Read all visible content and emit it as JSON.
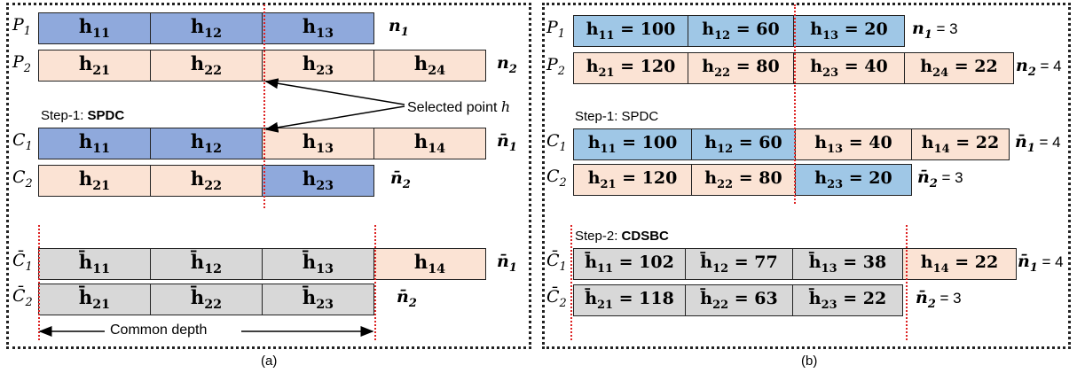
{
  "panel_a": {
    "caption": "(a)",
    "rows": [
      {
        "label": "P",
        "sub": "1",
        "cells": [
          [
            "h",
            "11"
          ],
          [
            "h",
            "12"
          ],
          [
            "h",
            "13"
          ]
        ],
        "n": "n",
        "nsub": "1"
      },
      {
        "label": "P",
        "sub": "2",
        "cells": [
          [
            "h",
            "21"
          ],
          [
            "h",
            "22"
          ],
          [
            "h",
            "23"
          ],
          [
            "h",
            "24"
          ]
        ],
        "n": "n",
        "nsub": "2"
      },
      {
        "label": "C",
        "sub": "1",
        "cells": [
          [
            "h",
            "11"
          ],
          [
            "h",
            "12"
          ],
          [
            "h",
            "13"
          ],
          [
            "h",
            "14"
          ]
        ],
        "n": "n̄",
        "nsub": "1"
      },
      {
        "label": "C",
        "sub": "2",
        "cells": [
          [
            "h",
            "21"
          ],
          [
            "h",
            "22"
          ],
          [
            "h",
            "23"
          ]
        ],
        "n": "n̄",
        "nsub": "2"
      },
      {
        "label": "C̄",
        "sub": "1",
        "cells": [
          [
            "h̄",
            "11"
          ],
          [
            "h̄",
            "12"
          ],
          [
            "h̄",
            "13"
          ],
          [
            "h",
            "14"
          ]
        ],
        "n": "n̄",
        "nsub": "1"
      },
      {
        "label": "C̄",
        "sub": "2",
        "cells": [
          [
            "h̄",
            "21"
          ],
          [
            "h̄",
            "22"
          ],
          [
            "h̄",
            "23"
          ]
        ],
        "n": "n̄",
        "nsub": "2"
      }
    ],
    "step1_prefix": "Step-1: ",
    "step1_name": "SPDC",
    "selected_point": "Selected point ",
    "selected_point_var": "h",
    "common_depth": "Common depth"
  },
  "panel_b": {
    "caption": "(b)",
    "rows": [
      {
        "label": "P",
        "sub": "1",
        "cells": [
          [
            "h",
            "11",
            " = 100"
          ],
          [
            "h",
            "12",
            " = 60"
          ],
          [
            "h",
            "13",
            " = 20"
          ]
        ],
        "n": "n",
        "nsub": "1",
        "nval": " = 3"
      },
      {
        "label": "P",
        "sub": "2",
        "cells": [
          [
            "h",
            "21",
            " = 120"
          ],
          [
            "h",
            "22",
            " = 80"
          ],
          [
            "h",
            "23",
            " = 40"
          ],
          [
            "h",
            "24",
            " = 22"
          ]
        ],
        "n": "n",
        "nsub": "2",
        "nval": " = 4"
      },
      {
        "label": "C",
        "sub": "1",
        "cells": [
          [
            "h",
            "11",
            " = 100"
          ],
          [
            "h",
            "12",
            " = 60"
          ],
          [
            "h",
            "13",
            " = 40"
          ],
          [
            "h",
            "14",
            " = 22"
          ]
        ],
        "n": "n̄",
        "nsub": "1",
        "nval": " = 4"
      },
      {
        "label": "C",
        "sub": "2",
        "cells": [
          [
            "h",
            "21",
            " = 120"
          ],
          [
            "h",
            "22",
            " = 80"
          ],
          [
            "h",
            "23",
            " = 20"
          ]
        ],
        "n": "n̄",
        "nsub": "2",
        "nval": " = 3"
      },
      {
        "label": "C̄",
        "sub": "1",
        "cells": [
          [
            "h̄",
            "11",
            " = 102"
          ],
          [
            "h̄",
            "12",
            " = 77"
          ],
          [
            "h̄",
            "13",
            " = 38"
          ],
          [
            "h",
            "14",
            " = 22"
          ]
        ],
        "n": "n̄",
        "nsub": "1",
        "nval": " = 4"
      },
      {
        "label": "C̄",
        "sub": "2",
        "cells": [
          [
            "h̄",
            "21",
            " = 118"
          ],
          [
            "h̄",
            "22",
            " = 63"
          ],
          [
            "h̄",
            "23",
            " = 22"
          ]
        ],
        "n": "n̄",
        "nsub": "2",
        "nval": " = 3"
      }
    ],
    "step1": "Step-1: SPDC",
    "step2_prefix": "Step-2: ",
    "step2_name": "CDSBC"
  },
  "colors": {
    "dark_blue": "#8fa9dc",
    "light_blue": "#9fc7e6",
    "peach": "#fbe3d4",
    "gray": "#d8d8d8",
    "red_dotted": "#dd2222"
  }
}
